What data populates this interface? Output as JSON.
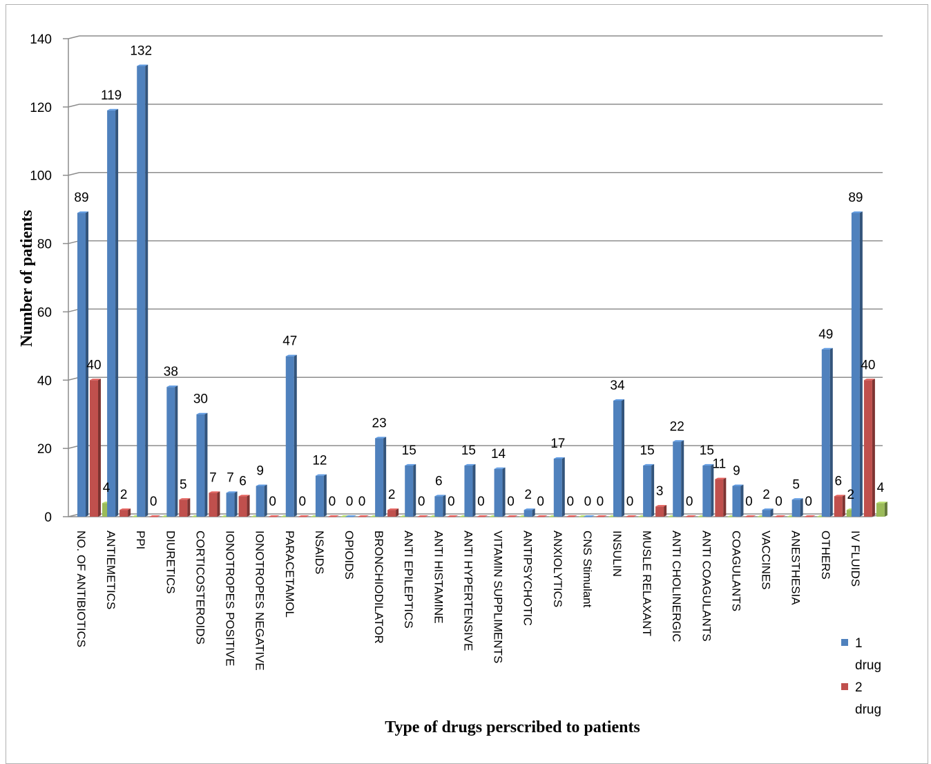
{
  "chart_data": {
    "type": "bar",
    "title": "",
    "xlabel": "Type of drugs perscribed to patients",
    "ylabel": "Number of patients",
    "ylim": [
      0,
      140
    ],
    "yticks": [
      "0",
      "20",
      "40",
      "60",
      "80",
      "100",
      "120",
      "140"
    ],
    "grid": true,
    "legend_position": "bottom-right",
    "categories": [
      "NO. OF ANTIBIOTICS",
      "ANTIEMETICS",
      "PPI",
      "DIURETICS",
      "CORTICOSTEROIDS",
      "IONOTROPES POSITIVE",
      "IONOTROPES NEGATIVE",
      "PARACETAMOL",
      "NSAIDS",
      "OPIOIDS",
      "BRONCHIODILATOR",
      "ANTI EPILEPTICS",
      "ANTI HISTAMINE",
      "ANTI HYPERTENSIVE",
      "VITAMIN SUPPLIMENTS",
      "ANTIPSYCHOTIC",
      "ANXIOLYTICS",
      "CNS Stimulant",
      "INSULIN",
      "MUSLE RELAXANT",
      "ANTI CHOLINERGIC",
      "ANTI COAGULANTS",
      "COAGULANTS",
      "VACCINES",
      "ANESTHESIA",
      "OTHERS",
      "IV FLUIDS"
    ],
    "series": [
      {
        "name": "1 drug",
        "color": "#4F81BD",
        "values": [
          89,
          119,
          132,
          38,
          30,
          7,
          9,
          47,
          12,
          0,
          23,
          15,
          6,
          15,
          14,
          2,
          17,
          0,
          34,
          15,
          22,
          15,
          9,
          2,
          5,
          49,
          89
        ]
      },
      {
        "name": "2 drug",
        "color": "#C0504D",
        "values": [
          40,
          2,
          0,
          5,
          7,
          6,
          0,
          0,
          0,
          0,
          2,
          0,
          0,
          0,
          0,
          0,
          0,
          0,
          0,
          3,
          0,
          11,
          0,
          0,
          0,
          6,
          40
        ]
      },
      {
        "name": "",
        "color": "#9BBB59",
        "values": [
          4,
          0,
          0,
          0,
          0,
          0,
          0,
          0,
          0,
          0,
          0,
          0,
          0,
          0,
          0,
          0,
          0,
          0,
          0,
          0,
          0,
          0,
          0,
          0,
          0,
          2,
          4
        ]
      }
    ],
    "legend": [
      {
        "line1": "1",
        "line2": "drug",
        "color": "#4F81BD"
      },
      {
        "line1": "2",
        "line2": "drug",
        "color": "#C0504D"
      }
    ]
  }
}
